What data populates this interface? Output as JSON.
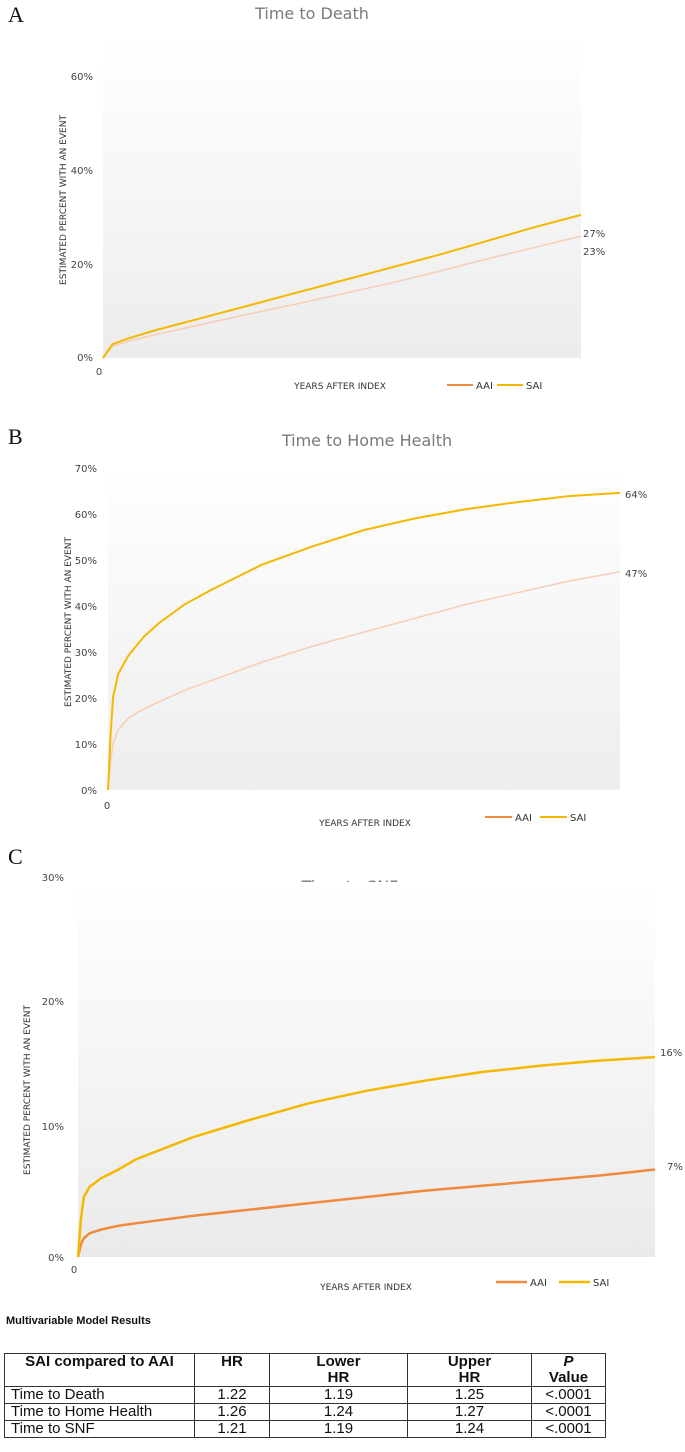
{
  "colors": {
    "aai": "#f08a3c",
    "sai": "#f5b800",
    "aai_faded": "#f6cdb5"
  },
  "chart_data": [
    {
      "panel": "A",
      "type": "line",
      "title": "Time to Death",
      "xlabel": "YEARS AFTER INDEX",
      "ylabel": "ESTIMATED PERCENT WITH AN EVENT",
      "ylim": [
        0,
        60
      ],
      "yticks": [
        "0%",
        "20%",
        "40%",
        "60%"
      ],
      "xticks": [
        "0"
      ],
      "legend": [
        "AAI",
        "SAI"
      ],
      "series": [
        {
          "name": "AAI",
          "x": [
            0,
            0.02,
            0.05,
            0.1,
            0.2,
            0.3,
            0.4,
            0.5,
            0.6,
            0.7,
            0.8,
            0.9,
            1.0
          ],
          "values": [
            0,
            2.2,
            3.1,
            4.2,
            6.2,
            8.2,
            10.1,
            12.1,
            14.1,
            16.3,
            18.6,
            20.8,
            23
          ]
        },
        {
          "name": "SAI",
          "x": [
            0,
            0.02,
            0.05,
            0.1,
            0.2,
            0.3,
            0.4,
            0.5,
            0.6,
            0.7,
            0.8,
            0.9,
            1.0
          ],
          "values": [
            0,
            2.6,
            3.6,
            5.0,
            7.4,
            9.8,
            12.2,
            14.6,
            17.0,
            19.4,
            22.0,
            24.6,
            27
          ]
        }
      ],
      "end_labels": [
        "23%",
        "27%"
      ]
    },
    {
      "panel": "B",
      "type": "line",
      "title": "Time to Home Health",
      "xlabel": "YEARS AFTER INDEX",
      "ylabel": "ESTIMATED PERCENT WITH AN EVENT",
      "ylim": [
        0,
        70
      ],
      "yticks": [
        "0%",
        "10%",
        "20%",
        "30%",
        "40%",
        "50%",
        "60%",
        "70%"
      ],
      "xticks": [
        "0"
      ],
      "legend": [
        "AAI",
        "SAI"
      ],
      "series": [
        {
          "name": "AAI",
          "x": [
            0,
            0.005,
            0.01,
            0.02,
            0.04,
            0.07,
            0.1,
            0.15,
            0.2,
            0.3,
            0.4,
            0.5,
            0.6,
            0.7,
            0.8,
            0.9,
            1.0
          ],
          "values": [
            0,
            6,
            10,
            13,
            15.5,
            17.5,
            19,
            21.5,
            23.5,
            27.5,
            31,
            34,
            37,
            40,
            42.5,
            45,
            47
          ]
        },
        {
          "name": "SAI",
          "x": [
            0,
            0.005,
            0.01,
            0.02,
            0.04,
            0.07,
            0.1,
            0.15,
            0.2,
            0.3,
            0.4,
            0.5,
            0.6,
            0.7,
            0.8,
            0.9,
            1.0
          ],
          "values": [
            0,
            12,
            20,
            25,
            29,
            33,
            36,
            40,
            43,
            48.5,
            52.5,
            56,
            58.5,
            60.5,
            62,
            63.3,
            64
          ]
        }
      ],
      "end_labels": [
        "47%",
        "64%"
      ]
    },
    {
      "panel": "C",
      "type": "line",
      "title": "Time to SNF",
      "xlabel": "YEARS AFTER INDEX",
      "ylabel": "ESTIMATED PERCENT WITH AN EVENT",
      "ylim": [
        0,
        30
      ],
      "yticks": [
        "0%",
        "10%",
        "20%",
        "30%"
      ],
      "xticks": [
        "0"
      ],
      "legend": [
        "AAI",
        "SAI"
      ],
      "series": [
        {
          "name": "AAI",
          "x": [
            0,
            0.005,
            0.01,
            0.02,
            0.04,
            0.07,
            0.1,
            0.2,
            0.3,
            0.4,
            0.5,
            0.6,
            0.7,
            0.8,
            0.9,
            1.0
          ],
          "values": [
            0,
            1.0,
            1.5,
            1.9,
            2.2,
            2.5,
            2.7,
            3.3,
            3.8,
            4.3,
            4.8,
            5.3,
            5.7,
            6.1,
            6.5,
            7
          ]
        },
        {
          "name": "SAI",
          "x": [
            0,
            0.005,
            0.01,
            0.02,
            0.04,
            0.07,
            0.1,
            0.2,
            0.3,
            0.4,
            0.5,
            0.6,
            0.7,
            0.8,
            0.9,
            1.0
          ],
          "values": [
            0,
            3.0,
            4.8,
            5.6,
            6.3,
            7.0,
            7.8,
            9.6,
            11.0,
            12.3,
            13.3,
            14.1,
            14.8,
            15.3,
            15.7,
            16
          ]
        }
      ],
      "end_labels": [
        "7%",
        "16%"
      ]
    }
  ],
  "results": {
    "title": "Multivariable Model Results",
    "headers": {
      "c0": "SAI compared to AAI",
      "c1": "HR",
      "c2a": "Lower",
      "c2b": "HR",
      "c3a": "Upper",
      "c3b": "HR",
      "c4a": "P",
      "c4b": "Value"
    },
    "rows": [
      {
        "name": "Time to Death",
        "hr": "1.22",
        "lower": "1.19",
        "upper": "1.25",
        "p": "<.0001"
      },
      {
        "name": "Time to Home Health",
        "hr": "1.26",
        "lower": "1.24",
        "upper": "1.27",
        "p": "<.0001"
      },
      {
        "name": "Time to SNF",
        "hr": "1.21",
        "lower": "1.19",
        "upper": "1.24",
        "p": "<.0001"
      }
    ]
  }
}
